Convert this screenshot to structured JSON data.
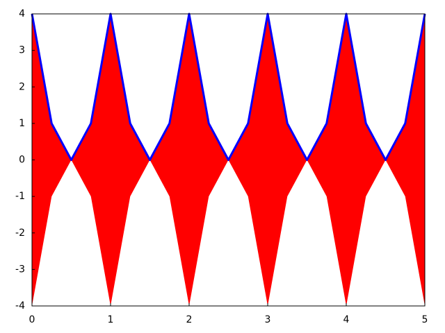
{
  "chart_data": {
    "type": "fill_between",
    "x": [
      0,
      0.25,
      0.5,
      0.75,
      1,
      1.25,
      1.5,
      1.75,
      2,
      2.25,
      2.5,
      2.75,
      3,
      3.25,
      3.5,
      3.75,
      4,
      4.25,
      4.5,
      4.75,
      5
    ],
    "series": [
      {
        "color": "#0000ff",
        "values": [
          4,
          1,
          0,
          1,
          4,
          1,
          0,
          1,
          4,
          1,
          0,
          1,
          4,
          1,
          0,
          1,
          4,
          1,
          0,
          1,
          4
        ]
      }
    ],
    "fill": {
      "color": "#ff0000",
      "lower": [
        -4,
        -1,
        0,
        -1,
        -4,
        -1,
        0,
        -1,
        -4,
        -1,
        0,
        -1,
        -4,
        -1,
        0,
        -1,
        -4,
        -1,
        0,
        -1,
        -4
      ]
    },
    "xlim": [
      0,
      5
    ],
    "ylim": [
      -4,
      4
    ],
    "xticks": [
      0,
      1,
      2,
      3,
      4,
      5
    ],
    "yticks": [
      -4,
      -3,
      -2,
      -1,
      0,
      1,
      2,
      3,
      4
    ]
  }
}
